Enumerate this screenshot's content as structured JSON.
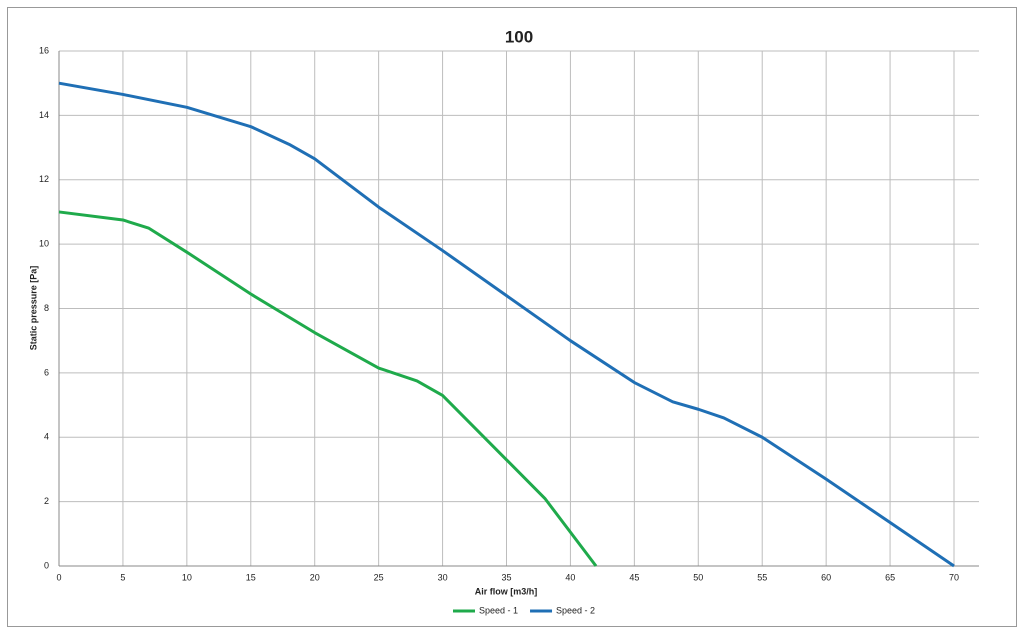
{
  "chart_data": {
    "type": "line",
    "title": "100",
    "x_label": "Air flow [m3/h]",
    "y_label": "Static pressure [Pa]",
    "series": [
      {
        "name": "Speed - 1",
        "color": "#1faa4b",
        "x": [
          0,
          5,
          7,
          10,
          15,
          20,
          25,
          28,
          30,
          32,
          35,
          38,
          42
        ],
        "values": [
          11,
          10.75,
          10.5,
          9.75,
          8.45,
          7.25,
          6.15,
          5.75,
          5.3,
          4.5,
          3.3,
          2.1,
          0
        ]
      },
      {
        "name": "Speed - 2",
        "color": "#1f6fb5",
        "x": [
          0,
          5,
          10,
          15,
          18,
          20,
          25,
          30,
          35,
          40,
          45,
          48,
          50,
          52,
          55,
          60,
          65,
          70
        ],
        "values": [
          15,
          14.65,
          14.25,
          13.65,
          13.1,
          12.65,
          11.15,
          9.8,
          8.4,
          7.0,
          5.7,
          5.1,
          4.87,
          4.6,
          4.0,
          2.7,
          1.35,
          0
        ]
      }
    ],
    "xlim": [
      0,
      70
    ],
    "xticks": [
      0,
      5,
      10,
      15,
      20,
      25,
      30,
      35,
      40,
      45,
      50,
      55,
      60,
      65,
      70
    ],
    "ylim": [
      0,
      16
    ],
    "yticks": [
      0,
      2,
      4,
      6,
      8,
      10,
      12,
      14,
      16
    ],
    "grid": true,
    "legend": "bottom"
  }
}
